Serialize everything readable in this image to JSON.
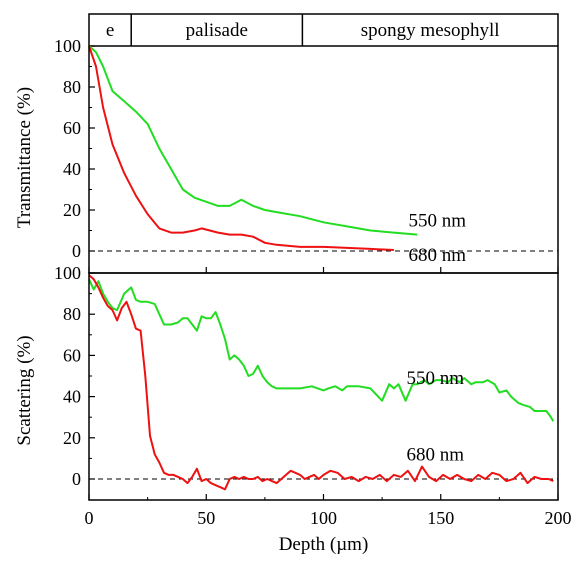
{
  "chart_data": [
    {
      "type": "line",
      "panel": "top",
      "ylabel": "Transmittance (%)",
      "xlim": [
        0,
        200
      ],
      "ylim": [
        -10,
        105
      ],
      "yticks": [
        0,
        20,
        40,
        60,
        80,
        100
      ],
      "ytick_labels": [
        "0",
        "20",
        "40",
        "60",
        "80",
        "100"
      ],
      "grid": false,
      "dashed_baseline": 0,
      "tissue_layers": [
        {
          "label": "e",
          "from": 0,
          "to": 18
        },
        {
          "label": "palisade",
          "from": 18,
          "to": 91
        },
        {
          "label": "spongy mesophyll",
          "from": 91,
          "to": 200
        }
      ],
      "series": [
        {
          "name": "550 nm",
          "color": "#22dd22",
          "label_at": [
            132,
            15
          ],
          "x": [
            0,
            3,
            6,
            10,
            15,
            20,
            25,
            30,
            35,
            40,
            45,
            50,
            55,
            60,
            65,
            70,
            75,
            80,
            90,
            100,
            110,
            120,
            130,
            140
          ],
          "y": [
            100,
            97,
            90,
            78,
            73,
            68,
            62,
            50,
            40,
            30,
            26,
            24,
            22,
            22,
            25,
            22,
            20,
            19,
            17,
            14,
            12,
            10,
            9,
            8
          ]
        },
        {
          "name": "680 nm",
          "color": "#ee1111",
          "label_at": [
            132,
            -2
          ],
          "x": [
            0,
            3,
            6,
            10,
            15,
            20,
            25,
            30,
            35,
            40,
            45,
            48,
            55,
            60,
            65,
            70,
            75,
            80,
            90,
            100,
            110,
            120,
            130
          ],
          "y": [
            100,
            90,
            70,
            52,
            38,
            27,
            18,
            11,
            9,
            9,
            10,
            11,
            9,
            8,
            8,
            7,
            4,
            3,
            2,
            2,
            1.5,
            1,
            0.5
          ]
        }
      ]
    },
    {
      "type": "line",
      "panel": "bottom",
      "ylabel": "Scattering (%)",
      "xlabel": "Depth (µm)",
      "xlim": [
        0,
        200
      ],
      "ylim": [
        -10,
        100
      ],
      "xticks": [
        0,
        50,
        100,
        150,
        200
      ],
      "xtick_labels": [
        "0",
        "50",
        "100",
        "150",
        "200"
      ],
      "yticks": [
        0,
        20,
        40,
        60,
        80,
        100
      ],
      "ytick_labels": [
        "0",
        "20",
        "40",
        "60",
        "80",
        "100"
      ],
      "grid": false,
      "dashed_baseline": 0,
      "series": [
        {
          "name": "550 nm",
          "color": "#22dd22",
          "label_at": [
            132,
            49
          ],
          "x": [
            0,
            2,
            4,
            6,
            8,
            10,
            12,
            15,
            18,
            20,
            22,
            25,
            28,
            30,
            32,
            35,
            38,
            40,
            42,
            44,
            46,
            48,
            50,
            52,
            54,
            56,
            58,
            60,
            62,
            64,
            66,
            68,
            70,
            72,
            74,
            76,
            78,
            80,
            85,
            90,
            95,
            100,
            102,
            105,
            108,
            110,
            115,
            120,
            125,
            128,
            130,
            132,
            135,
            138,
            140,
            143,
            145,
            148,
            150,
            153,
            155,
            158,
            160,
            163,
            165,
            168,
            170,
            173,
            175,
            178,
            180,
            183,
            185,
            188,
            190,
            193,
            195,
            197,
            198
          ],
          "y": [
            97,
            92,
            96,
            90,
            86,
            83,
            82,
            90,
            93,
            87,
            86,
            86,
            85,
            80,
            75,
            75,
            76,
            78,
            78,
            75,
            72,
            79,
            78,
            78,
            81,
            75,
            68,
            58,
            60,
            58,
            55,
            50,
            51,
            55,
            50,
            47,
            45,
            44,
            44,
            44,
            45,
            43,
            44,
            45,
            43,
            45,
            45,
            44,
            38,
            46,
            44,
            46,
            38,
            46,
            46,
            48,
            46,
            48,
            48,
            47,
            49,
            47,
            49,
            46,
            47,
            47,
            48,
            46,
            42,
            43,
            40,
            37,
            36,
            35,
            33,
            33,
            33,
            30,
            28
          ]
        },
        {
          "name": "680 nm",
          "color": "#ee1111",
          "label_at": [
            132,
            12
          ],
          "x": [
            0,
            2,
            4,
            6,
            8,
            10,
            12,
            14,
            16,
            18,
            20,
            22,
            24,
            26,
            28,
            30,
            32,
            34,
            36,
            38,
            40,
            42,
            44,
            46,
            48,
            50,
            52,
            54,
            56,
            58,
            60,
            62,
            64,
            66,
            68,
            70,
            72,
            74,
            76,
            78,
            80,
            82,
            84,
            86,
            88,
            90,
            92,
            94,
            96,
            98,
            100,
            103,
            106,
            109,
            112,
            115,
            118,
            121,
            124,
            127,
            130,
            133,
            136,
            139,
            142,
            145,
            148,
            151,
            154,
            157,
            160,
            163,
            166,
            169,
            172,
            175,
            178,
            181,
            184,
            187,
            190,
            193,
            196,
            198
          ],
          "y": [
            99,
            97,
            93,
            88,
            84,
            82,
            77,
            83,
            86,
            80,
            73,
            72,
            50,
            21,
            12,
            8,
            3,
            2,
            2,
            1,
            0,
            -2,
            1,
            5,
            -1,
            0,
            -2,
            -3,
            -4,
            -5,
            0,
            1,
            0,
            1,
            0,
            0,
            1,
            -1,
            0,
            -1,
            -2,
            0,
            2,
            4,
            3,
            2,
            0,
            1,
            2,
            0,
            2,
            4,
            3,
            0,
            1,
            -1,
            1,
            0,
            2,
            -1,
            2,
            1,
            4,
            -1,
            6,
            1,
            -1,
            2,
            0,
            2,
            0,
            -1,
            2,
            0,
            3,
            2,
            -1,
            0,
            3,
            -2,
            1,
            0,
            0,
            -1
          ]
        }
      ]
    }
  ]
}
